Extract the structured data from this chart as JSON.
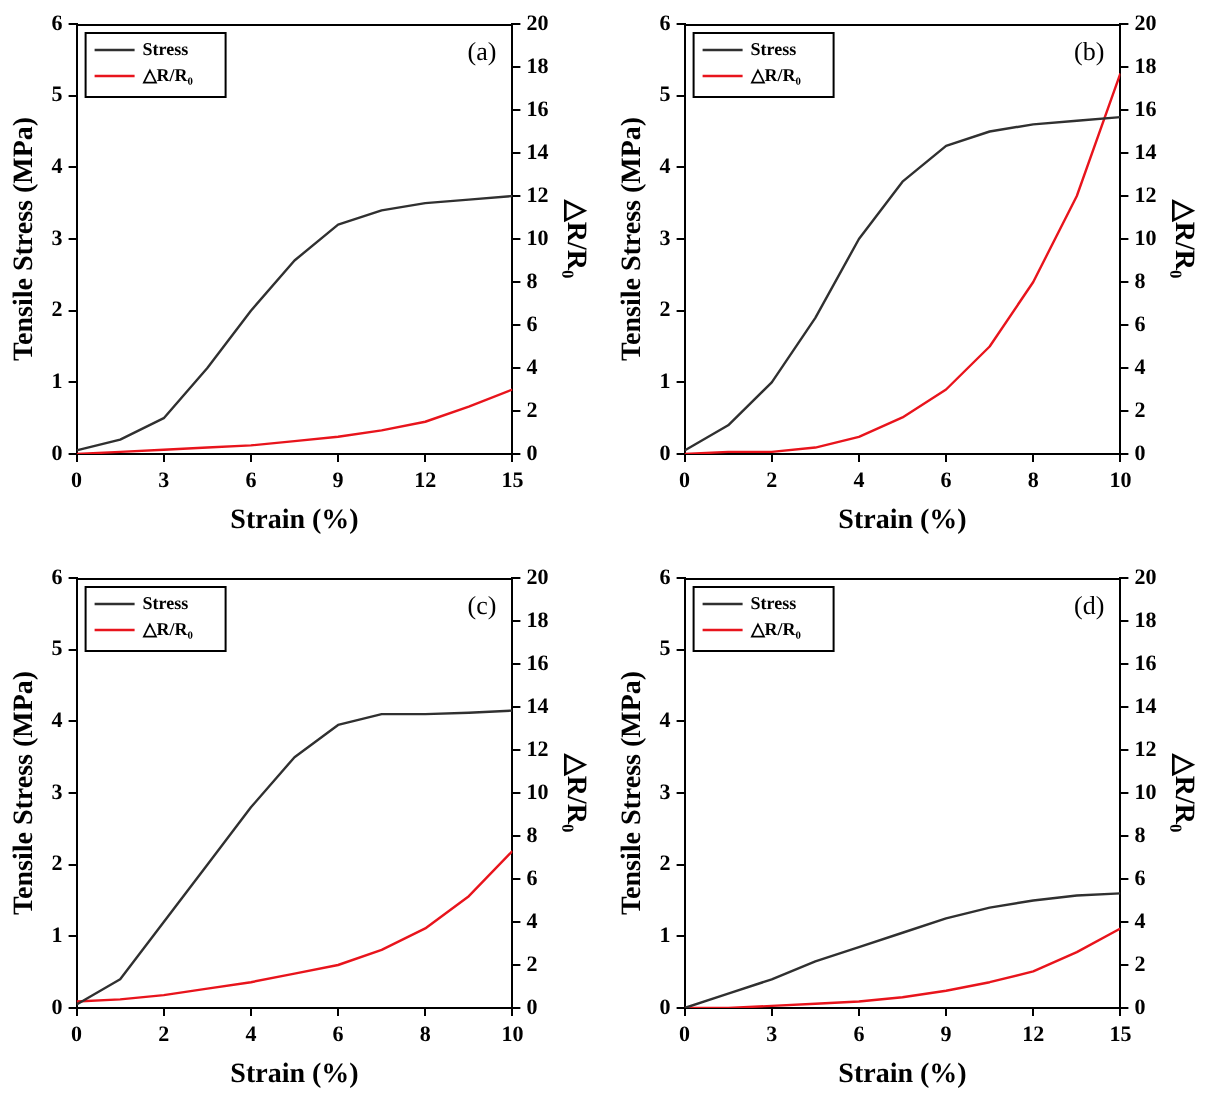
{
  "chart_data": [
    {
      "type": "line",
      "annotations": [
        "(a)"
      ],
      "xlabel": "Strain (%)",
      "ylabel": "Tensile Stress (MPa)",
      "y2label": "△R/R₀",
      "x": [
        0,
        1.5,
        3,
        4.5,
        6,
        7.5,
        9,
        10.5,
        12,
        13.5,
        15
      ],
      "xlim": [
        0,
        15
      ],
      "xticks": [
        0,
        3,
        6,
        9,
        12,
        15
      ],
      "ylim": [
        0,
        6
      ],
      "yticks": [
        0,
        1,
        2,
        3,
        4,
        5,
        6
      ],
      "y2lim": [
        0,
        20
      ],
      "y2ticks": [
        0,
        2,
        4,
        6,
        8,
        10,
        12,
        14,
        16,
        18,
        20
      ],
      "legend": "top left",
      "grid": false,
      "marker": "none",
      "series": [
        {
          "name": "Stress",
          "color": "#303030",
          "values": [
            0.05,
            0.2,
            0.5,
            1.2,
            2.0,
            2.7,
            3.2,
            3.4,
            3.5,
            3.55,
            3.6
          ]
        },
        {
          "name": "△R/R₀",
          "color": "#e8141c",
          "axis": "y2",
          "values": [
            0,
            0.1,
            0.2,
            0.3,
            0.4,
            0.6,
            0.8,
            1.1,
            1.5,
            2.2,
            3.0
          ]
        }
      ]
    },
    {
      "type": "line",
      "annotations": [
        "(b)"
      ],
      "xlabel": "Strain (%)",
      "ylabel": "Tensile Stress (MPa)",
      "y2label": "△R/R₀",
      "x": [
        0,
        1,
        2,
        3,
        4,
        5,
        6,
        7,
        8,
        9,
        10
      ],
      "xlim": [
        0,
        10
      ],
      "xticks": [
        0,
        2,
        4,
        6,
        8,
        10
      ],
      "ylim": [
        0,
        6
      ],
      "yticks": [
        0,
        1,
        2,
        3,
        4,
        5,
        6
      ],
      "y2lim": [
        0,
        20
      ],
      "y2ticks": [
        0,
        2,
        4,
        6,
        8,
        10,
        12,
        14,
        16,
        18,
        20
      ],
      "legend": "top left",
      "grid": false,
      "marker": "none",
      "series": [
        {
          "name": "Stress",
          "color": "#303030",
          "values": [
            0.05,
            0.4,
            1.0,
            1.9,
            3.0,
            3.8,
            4.3,
            4.5,
            4.6,
            4.65,
            4.7
          ]
        },
        {
          "name": "△R/R₀",
          "color": "#e8141c",
          "axis": "y2",
          "values": [
            0,
            0.1,
            0.1,
            0.3,
            0.8,
            1.7,
            3,
            5,
            8,
            12,
            17.7
          ]
        }
      ]
    },
    {
      "type": "line",
      "annotations": [
        "(c)"
      ],
      "xlabel": "Strain (%)",
      "ylabel": "Tensile Stress (MPa)",
      "y2label": "△R/R₀",
      "x": [
        0,
        1,
        2,
        3,
        4,
        5,
        6,
        7,
        8,
        9,
        10
      ],
      "xlim": [
        0,
        10
      ],
      "xticks": [
        0,
        2,
        4,
        6,
        8,
        10
      ],
      "ylim": [
        0,
        6
      ],
      "yticks": [
        0,
        1,
        2,
        3,
        4,
        5,
        6
      ],
      "y2lim": [
        0,
        20
      ],
      "y2ticks": [
        0,
        2,
        4,
        6,
        8,
        10,
        12,
        14,
        16,
        18,
        20
      ],
      "legend": "top left",
      "grid": false,
      "marker": "none",
      "series": [
        {
          "name": "Stress",
          "color": "#303030",
          "values": [
            0.05,
            0.4,
            1.2,
            2.0,
            2.8,
            3.5,
            3.95,
            4.1,
            4.1,
            4.12,
            4.15
          ]
        },
        {
          "name": "△R/R₀",
          "color": "#e8141c",
          "axis": "y2",
          "values": [
            0.3,
            0.4,
            0.6,
            0.9,
            1.2,
            1.6,
            2.0,
            2.7,
            3.7,
            5.2,
            7.3
          ]
        }
      ]
    },
    {
      "type": "line",
      "annotations": [
        "(d)"
      ],
      "xlabel": "Strain (%)",
      "ylabel": "Tensile Stress (MPa)",
      "y2label": "△R/R₀",
      "x": [
        0,
        1.5,
        3,
        4.5,
        6,
        7.5,
        9,
        10.5,
        12,
        13.5,
        15
      ],
      "xlim": [
        0,
        15
      ],
      "xticks": [
        0,
        3,
        6,
        9,
        12,
        15
      ],
      "ylim": [
        0,
        6
      ],
      "yticks": [
        0,
        1,
        2,
        3,
        4,
        5,
        6
      ],
      "y2lim": [
        0,
        20
      ],
      "y2ticks": [
        0,
        2,
        4,
        6,
        8,
        10,
        12,
        14,
        16,
        18,
        20
      ],
      "legend": "top left",
      "grid": false,
      "marker": "none",
      "series": [
        {
          "name": "Stress",
          "color": "#303030",
          "values": [
            0,
            0.2,
            0.4,
            0.65,
            0.85,
            1.05,
            1.25,
            1.4,
            1.5,
            1.57,
            1.6
          ]
        },
        {
          "name": "△R/R₀",
          "color": "#e8141c",
          "axis": "y2",
          "values": [
            0,
            0,
            0.1,
            0.2,
            0.3,
            0.5,
            0.8,
            1.2,
            1.7,
            2.6,
            3.7
          ]
        }
      ]
    }
  ]
}
